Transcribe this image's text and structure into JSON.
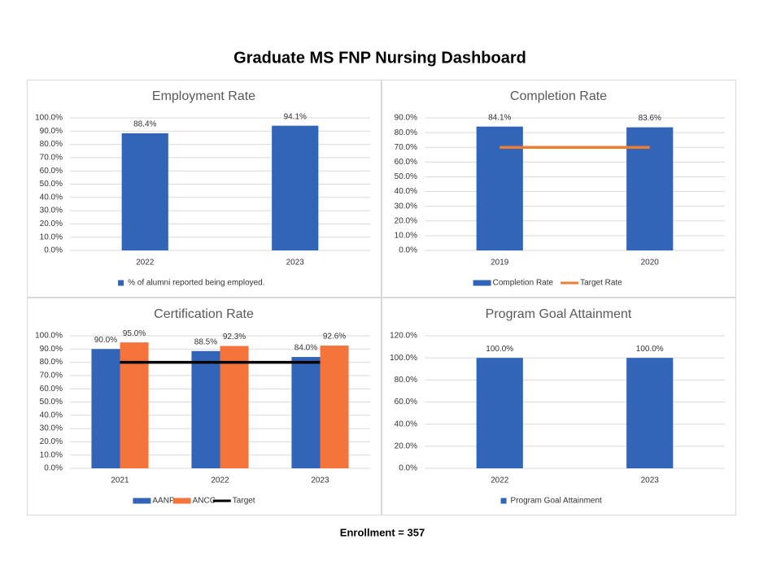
{
  "title": "Graduate MS FNP Nursing Dashboard",
  "footer": "Enrollment = 357",
  "chart_data": [
    {
      "type": "bar",
      "title": "Employment Rate",
      "categories": [
        "2022",
        "2023"
      ],
      "series": [
        {
          "name": "% of alumni reported being employed.",
          "color": "#3264b8",
          "values": [
            88.4,
            94.1
          ],
          "value_labels": [
            "88.4%",
            "94.1%"
          ]
        }
      ],
      "ylim": [
        0,
        100
      ],
      "yticks": [
        {
          "value": 0,
          "label": "0.0%"
        },
        {
          "value": 10,
          "label": "10.0%"
        },
        {
          "value": 20,
          "label": "20.0%"
        },
        {
          "value": 30,
          "label": "30.0%"
        },
        {
          "value": 40,
          "label": "40.0%"
        },
        {
          "value": 50,
          "label": "50.0%"
        },
        {
          "value": 60,
          "label": "60.0%"
        },
        {
          "value": 70,
          "label": "70.0%"
        },
        {
          "value": 80,
          "label": "80.0%"
        },
        {
          "value": 90,
          "label": "90.0%"
        },
        {
          "value": 100,
          "label": "100.0%"
        }
      ],
      "grid": true
    },
    {
      "type": "bar",
      "title": "Completion Rate",
      "categories": [
        "2019",
        "2020"
      ],
      "series": [
        {
          "name": "Completion Rate",
          "color": "#3264b8",
          "values": [
            84.1,
            83.6
          ],
          "value_labels": [
            "84.1%",
            "83.6%"
          ]
        },
        {
          "name": "Target Rate",
          "type": "line",
          "color": "#ed7d31",
          "values": [
            70,
            70
          ]
        }
      ],
      "ylim": [
        0,
        90
      ],
      "yticks": [
        {
          "value": 0,
          "label": "0.0%"
        },
        {
          "value": 10,
          "label": "10.0%"
        },
        {
          "value": 20,
          "label": "20.0%"
        },
        {
          "value": 30,
          "label": "30.0%"
        },
        {
          "value": 40,
          "label": "40.0%"
        },
        {
          "value": 50,
          "label": "50.0%"
        },
        {
          "value": 60,
          "label": "60.0%"
        },
        {
          "value": 70,
          "label": "70.0%"
        },
        {
          "value": 80,
          "label": "80.0%"
        },
        {
          "value": 90,
          "label": "90.0%"
        }
      ],
      "grid": true
    },
    {
      "type": "bar",
      "title": "Certification Rate",
      "categories": [
        "2021",
        "2022",
        "2023"
      ],
      "series": [
        {
          "name": "AANP",
          "color": "#3264b8",
          "values": [
            90.0,
            88.5,
            84.0
          ],
          "value_labels": [
            "90.0%",
            "88.5%",
            "84.0%"
          ]
        },
        {
          "name": "ANCC",
          "color": "#f4743b",
          "values": [
            95.0,
            92.3,
            92.6
          ],
          "value_labels": [
            "95.0%",
            "92.3%",
            "92.6%"
          ]
        },
        {
          "name": "Target",
          "type": "line",
          "color": "#000000",
          "values": [
            80,
            80,
            80
          ]
        }
      ],
      "ylim": [
        0,
        100
      ],
      "yticks": [
        {
          "value": 0,
          "label": "0.0%"
        },
        {
          "value": 10,
          "label": "10.0%"
        },
        {
          "value": 20,
          "label": "20.0%"
        },
        {
          "value": 30,
          "label": "30.0%"
        },
        {
          "value": 40,
          "label": "40.0%"
        },
        {
          "value": 50,
          "label": "50.0%"
        },
        {
          "value": 60,
          "label": "60.0%"
        },
        {
          "value": 70,
          "label": "70.0%"
        },
        {
          "value": 80,
          "label": "80.0%"
        },
        {
          "value": 90,
          "label": "90.0%"
        },
        {
          "value": 100,
          "label": "100.0%"
        }
      ],
      "grid": true
    },
    {
      "type": "bar",
      "title": "Program Goal Attainment",
      "categories": [
        "2022",
        "2023"
      ],
      "series": [
        {
          "name": "Program Goal Attainment",
          "color": "#3264b8",
          "values": [
            100.0,
            100.0
          ],
          "value_labels": [
            "100.0%",
            "100.0%"
          ]
        }
      ],
      "ylim": [
        0,
        120
      ],
      "yticks": [
        {
          "value": 0,
          "label": "0.0%"
        },
        {
          "value": 20,
          "label": "20.0%"
        },
        {
          "value": 40,
          "label": "40.0%"
        },
        {
          "value": 60,
          "label": "60.0%"
        },
        {
          "value": 80,
          "label": "80.0%"
        },
        {
          "value": 100,
          "label": "100.0%"
        },
        {
          "value": 120,
          "label": "120.0%"
        }
      ],
      "grid": true
    }
  ]
}
